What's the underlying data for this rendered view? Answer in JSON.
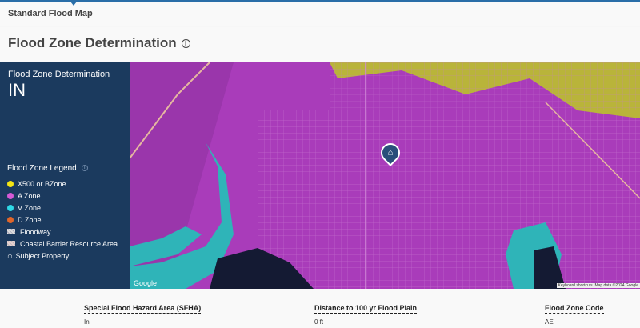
{
  "topbar": {
    "tab": "Standard Flood Map"
  },
  "header": {
    "title": "Flood Zone Determination",
    "info_icon": "info-icon"
  },
  "sidebar": {
    "title": "Flood Zone Determination",
    "value": "IN",
    "legend": {
      "title": "Flood Zone Legend",
      "items": [
        {
          "label": "X500 or BZone",
          "color": "#f5e614"
        },
        {
          "label": "A Zone",
          "color": "#d65ad6"
        },
        {
          "label": "V Zone",
          "color": "#2fd9e6"
        },
        {
          "label": "D Zone",
          "color": "#e0662a"
        },
        {
          "label": "Floodway",
          "icon": "hatch-icon"
        },
        {
          "label": "Coastal Barrier Resource Area",
          "icon": "hatch-icon"
        },
        {
          "label": "Subject Property",
          "icon": "house-icon"
        }
      ]
    }
  },
  "map": {
    "google": "Google",
    "shortcuts": "Keyboard shortcuts",
    "map_data": "Map data ©2024 Google",
    "pin_icon": "house-marker-icon"
  },
  "facts": [
    {
      "label": "Special Flood Hazard Area (SFHA)",
      "value": "In"
    },
    {
      "label": "Distance to 100 yr Flood Plain",
      "value": "0 ft"
    },
    {
      "label": "Flood Zone Code",
      "value": "AE"
    }
  ]
}
